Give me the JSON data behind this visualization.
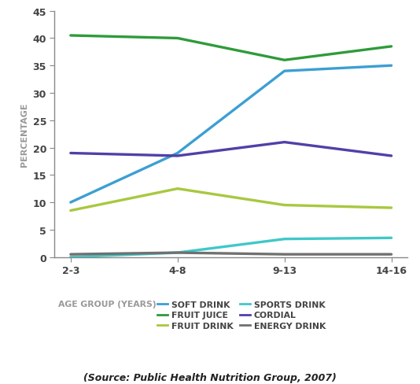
{
  "x_labels": [
    "2-3",
    "4-8",
    "9-13",
    "14-16"
  ],
  "x_positions": [
    0,
    1,
    2,
    3
  ],
  "series": {
    "SOFT DRINK": {
      "values": [
        10.0,
        19.0,
        34.0,
        35.0
      ],
      "color": "#3B9FD4"
    },
    "FRUIT JUICE": {
      "values": [
        40.5,
        40.0,
        36.0,
        38.5
      ],
      "color": "#2E9B3A"
    },
    "FRUIT DRINK": {
      "values": [
        8.5,
        12.5,
        9.5,
        9.0
      ],
      "color": "#A8C840"
    },
    "SPORTS DRINK": {
      "values": [
        0.0,
        0.8,
        3.3,
        3.5
      ],
      "color": "#40C8C8"
    },
    "CORDIAL": {
      "values": [
        19.0,
        18.5,
        21.0,
        18.5
      ],
      "color": "#5040A8"
    },
    "ENERGY DRINK": {
      "values": [
        0.5,
        0.8,
        0.5,
        0.5
      ],
      "color": "#707070"
    }
  },
  "ylabel": "PERCENTAGE",
  "xlabel_text": "AGE GROUP (YEARS)",
  "ylim": [
    0,
    45
  ],
  "yticks": [
    0,
    5,
    10,
    15,
    20,
    25,
    30,
    35,
    40,
    45
  ],
  "source_text": "(Source: Public Health Nutrition Group, 2007)",
  "bg_color": "#ffffff",
  "axis_label_color": "#999999",
  "tick_color": "#444444",
  "legend_label_color": "#444444",
  "line_width": 2.4,
  "legend_col1": [
    "SOFT DRINK",
    "FRUIT DRINK",
    "CORDIAL"
  ],
  "legend_col2": [
    "FRUIT JUICE",
    "SPORTS DRINK",
    "ENERGY DRINK"
  ]
}
